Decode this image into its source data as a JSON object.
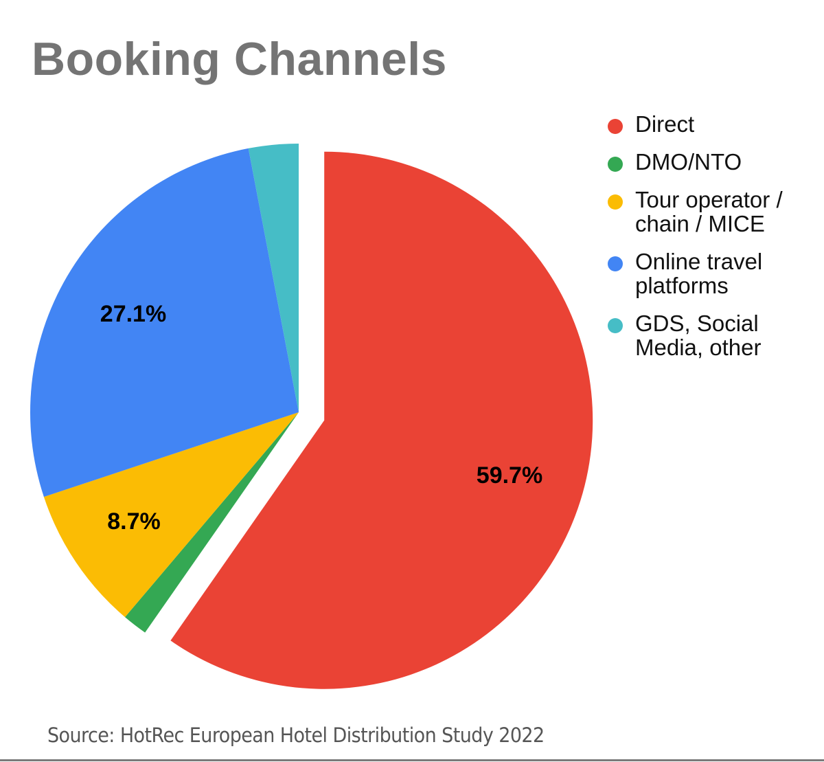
{
  "title": "Booking Channels",
  "source": "Source: HotRec European Hotel Distribution Study 2022",
  "legend": [
    {
      "label": "Direct",
      "color": "#ea4335"
    },
    {
      "label": "DMO/NTO",
      "color": "#34a853"
    },
    {
      "label": "Tour operator / chain / MICE",
      "color": "#fbbc04"
    },
    {
      "label": "Online travel platforms",
      "color": "#4285f4"
    },
    {
      "label": "GDS, Social Media, other",
      "color": "#46bdc6"
    }
  ],
  "chart_data": {
    "type": "pie",
    "title": "Booking Channels",
    "categories": [
      "Direct",
      "DMO/NTO",
      "Tour operator / chain / MICE",
      "Online travel platforms",
      "GDS, Social Media, other"
    ],
    "values": [
      59.7,
      1.5,
      8.7,
      27.1,
      3.0
    ],
    "data_labels": [
      "59.7%",
      "",
      "8.7%",
      "27.1%",
      ""
    ],
    "colors": [
      "#ea4335",
      "#34a853",
      "#fbbc04",
      "#4285f4",
      "#46bdc6"
    ],
    "exploded": [
      "Direct"
    ],
    "start_angle_deg": 0,
    "direction": "clockwise",
    "legend_position": "right",
    "annotation": "Source: HotRec European Hotel Distribution Study 2022"
  }
}
